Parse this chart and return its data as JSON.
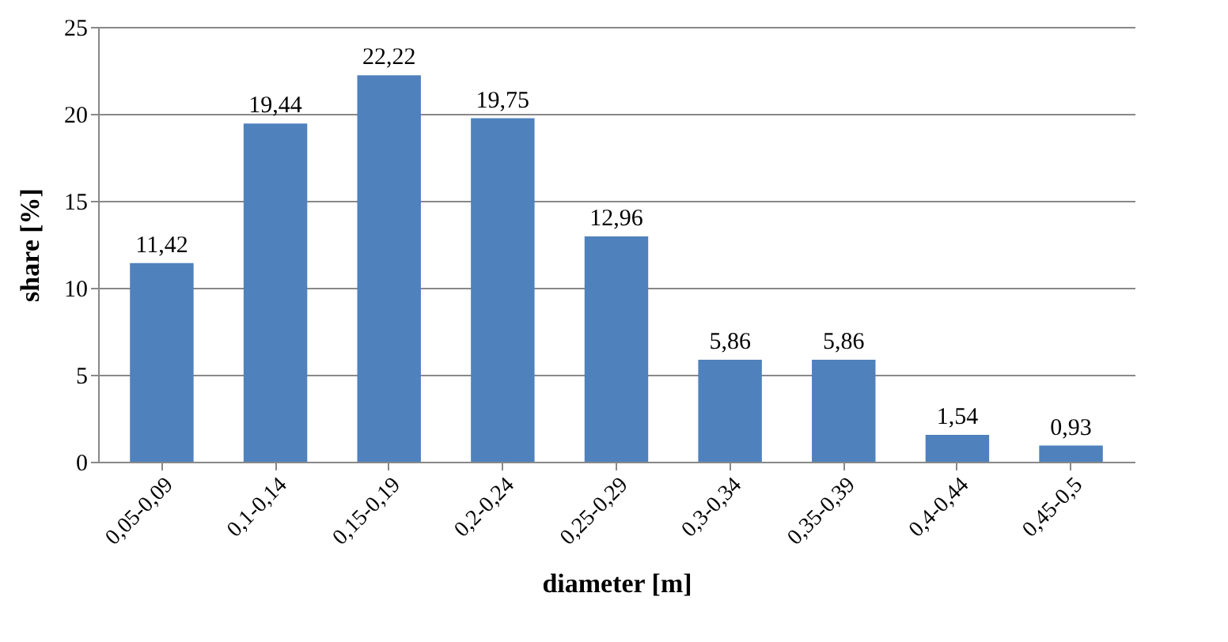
{
  "chart_data": {
    "type": "bar",
    "xlabel": "diameter [m]",
    "ylabel": "share [%]",
    "categories": [
      "0,05-0,09",
      "0,1-0,14",
      "0,15-0,19",
      "0,2-0,24",
      "0,25-0,29",
      "0,3-0,34",
      "0,35-0,39",
      "0,4-0,44",
      "0,45-0,5"
    ],
    "values": [
      11.42,
      19.44,
      22.22,
      19.75,
      12.96,
      5.86,
      5.86,
      1.54,
      0.93
    ],
    "value_labels": [
      "11,42",
      "19,44",
      "22,22",
      "19,75",
      "12,96",
      "5,86",
      "5,86",
      "1,54",
      "0,93"
    ],
    "color": "#4f81bd",
    "ylim": [
      0,
      25
    ],
    "yticks": [
      0,
      5,
      10,
      15,
      20,
      25
    ],
    "grid": "y"
  }
}
